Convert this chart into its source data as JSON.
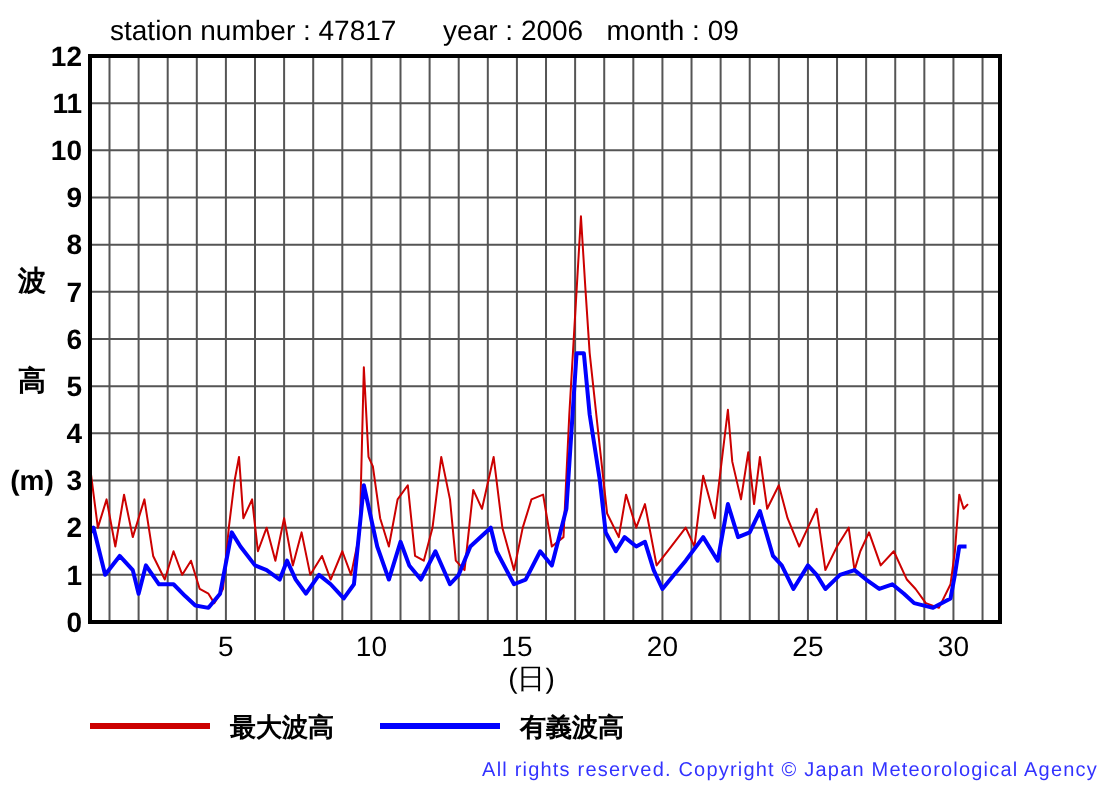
{
  "chart_data": {
    "type": "line",
    "title": "station number : 47817      year : 2006   month : 09",
    "xlabel": "(日)",
    "ylabel": "波高(m)",
    "annotations": [
      "All rights reserved. Copyright © Japan Meteorological Agency"
    ],
    "xlim": [
      0.33,
      31.6
    ],
    "xticks": [
      {
        "value": 1,
        "label": null
      },
      {
        "value": 2,
        "label": null
      },
      {
        "value": 3,
        "label": null
      },
      {
        "value": 4,
        "label": null
      },
      5,
      {
        "value": 6,
        "label": null
      },
      {
        "value": 7,
        "label": null
      },
      {
        "value": 8,
        "label": null
      },
      {
        "value": 9,
        "label": null
      },
      10,
      {
        "value": 11,
        "label": null
      },
      {
        "value": 12,
        "label": null
      },
      {
        "value": 13,
        "label": null
      },
      {
        "value": 14,
        "label": null
      },
      15,
      {
        "value": 16,
        "label": null
      },
      {
        "value": 17,
        "label": null
      },
      {
        "value": 18,
        "label": null
      },
      {
        "value": 19,
        "label": null
      },
      20,
      {
        "value": 21,
        "label": null
      },
      {
        "value": 22,
        "label": null
      },
      {
        "value": 23,
        "label": null
      },
      {
        "value": 24,
        "label": null
      },
      25,
      {
        "value": 26,
        "label": null
      },
      {
        "value": 27,
        "label": null
      },
      {
        "value": 28,
        "label": null
      },
      {
        "value": 29,
        "label": null
      },
      30,
      {
        "value": 31,
        "label": null
      }
    ],
    "ylim": [
      0,
      12
    ],
    "yticks": [
      0,
      1,
      2,
      3,
      4,
      5,
      6,
      7,
      8,
      9,
      10,
      11,
      12
    ],
    "grid": true,
    "legend": "bottom",
    "marker": "none",
    "line_style": "solid",
    "series": [
      {
        "name": "最大波高",
        "color": "#cc0000",
        "x": [
          0.35,
          0.6,
          0.9,
          1.2,
          1.5,
          1.8,
          2.2,
          2.5,
          2.9,
          3.2,
          3.5,
          3.8,
          4.1,
          4.4,
          4.6,
          4.9,
          5.1,
          5.3,
          5.45,
          5.6,
          5.9,
          6.1,
          6.4,
          6.7,
          7.0,
          7.3,
          7.6,
          7.9,
          8.3,
          8.6,
          9.0,
          9.3,
          9.6,
          9.74,
          9.9,
          10.05,
          10.3,
          10.6,
          10.9,
          11.25,
          11.5,
          11.8,
          12.1,
          12.4,
          12.7,
          12.9,
          13.2,
          13.5,
          13.8,
          14.2,
          14.5,
          14.9,
          15.2,
          15.5,
          15.9,
          16.2,
          16.6,
          16.8,
          17.0,
          17.2,
          17.35,
          17.5,
          17.85,
          18.1,
          18.5,
          18.75,
          19.1,
          19.4,
          19.8,
          20.3,
          20.8,
          21.1,
          21.4,
          21.8,
          22.25,
          22.4,
          22.7,
          22.95,
          23.15,
          23.35,
          23.6,
          24.0,
          24.3,
          24.7,
          25.0,
          25.3,
          25.6,
          26.0,
          26.4,
          26.6,
          26.8,
          27.1,
          27.5,
          27.95,
          28.4,
          28.7,
          29.05,
          29.5,
          29.9,
          30.05,
          30.2,
          30.35,
          30.5
        ],
        "values": [
          3.2,
          2.0,
          2.6,
          1.6,
          2.7,
          1.8,
          2.6,
          1.4,
          0.9,
          1.5,
          1.0,
          1.3,
          0.7,
          0.6,
          0.4,
          0.7,
          2.0,
          3.0,
          3.5,
          2.2,
          2.6,
          1.5,
          2.0,
          1.3,
          2.2,
          1.2,
          1.9,
          1.0,
          1.4,
          0.9,
          1.5,
          1.0,
          1.9,
          5.4,
          3.5,
          3.3,
          2.2,
          1.6,
          2.6,
          2.9,
          1.4,
          1.3,
          2.0,
          3.5,
          2.6,
          1.3,
          1.1,
          2.8,
          2.4,
          3.5,
          2.0,
          1.1,
          2.0,
          2.6,
          2.7,
          1.6,
          1.8,
          4.4,
          6.5,
          8.6,
          7.1,
          5.7,
          3.7,
          2.3,
          1.8,
          2.7,
          2.0,
          2.5,
          1.2,
          1.6,
          2.0,
          1.6,
          3.1,
          2.2,
          4.5,
          3.4,
          2.6,
          3.6,
          2.5,
          3.5,
          2.4,
          2.9,
          2.2,
          1.6,
          2.0,
          2.4,
          1.1,
          1.6,
          2.0,
          1.1,
          1.5,
          1.9,
          1.2,
          1.5,
          0.9,
          0.7,
          0.4,
          0.3,
          0.8,
          1.5,
          2.7,
          2.4,
          2.5
        ]
      },
      {
        "name": "有義波高",
        "color": "#0000ff",
        "x": [
          0.35,
          0.45,
          0.85,
          1.35,
          1.8,
          2.0,
          2.25,
          2.7,
          3.2,
          3.6,
          3.95,
          4.4,
          4.8,
          5.2,
          5.5,
          6.0,
          6.4,
          6.85,
          7.1,
          7.4,
          7.75,
          8.2,
          8.6,
          9.05,
          9.4,
          9.74,
          10.2,
          10.6,
          11.0,
          11.3,
          11.7,
          12.2,
          12.7,
          13.0,
          13.4,
          14.1,
          14.3,
          14.9,
          15.3,
          15.8,
          16.2,
          16.7,
          17.05,
          17.3,
          17.5,
          17.85,
          18.05,
          18.4,
          18.7,
          19.1,
          19.4,
          19.7,
          20.0,
          20.4,
          20.8,
          21.4,
          21.9,
          22.25,
          22.6,
          23.0,
          23.35,
          23.8,
          24.1,
          24.5,
          25.0,
          25.3,
          25.6,
          26.1,
          26.6,
          27.0,
          27.45,
          27.9,
          28.3,
          28.65,
          29.3,
          29.9,
          30.05,
          30.2,
          30.45
        ],
        "values": [
          1.9,
          2.0,
          1.0,
          1.4,
          1.1,
          0.6,
          1.2,
          0.8,
          0.8,
          0.55,
          0.35,
          0.3,
          0.6,
          1.9,
          1.6,
          1.2,
          1.1,
          0.9,
          1.3,
          0.9,
          0.6,
          1.0,
          0.8,
          0.5,
          0.8,
          2.9,
          1.6,
          0.9,
          1.7,
          1.2,
          0.9,
          1.5,
          0.8,
          1.0,
          1.6,
          2.0,
          1.5,
          0.8,
          0.9,
          1.5,
          1.2,
          2.4,
          5.7,
          5.7,
          4.4,
          3.0,
          1.9,
          1.5,
          1.8,
          1.6,
          1.7,
          1.1,
          0.7,
          1.0,
          1.3,
          1.8,
          1.3,
          2.5,
          1.8,
          1.9,
          2.35,
          1.4,
          1.2,
          0.7,
          1.2,
          1.0,
          0.7,
          1.0,
          1.1,
          0.9,
          0.7,
          0.8,
          0.6,
          0.4,
          0.3,
          0.5,
          1.0,
          1.6,
          1.6
        ]
      }
    ]
  }
}
